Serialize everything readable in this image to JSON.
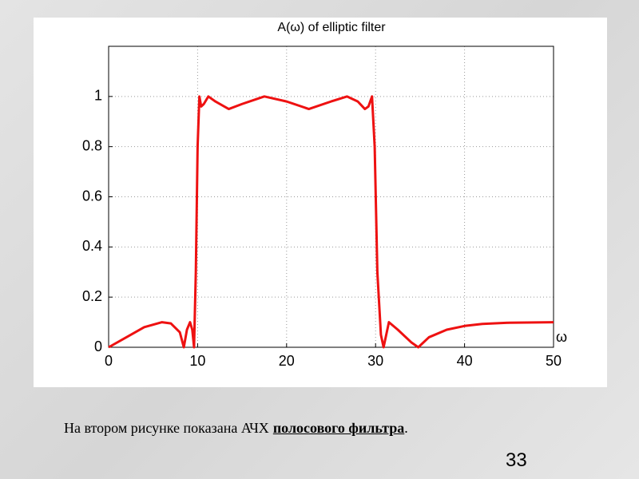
{
  "chart_data": {
    "type": "line",
    "title": "A(ω) of elliptic filter",
    "xlabel": "ω",
    "x": [
      0,
      2,
      4,
      6,
      7,
      8,
      8.45,
      8.8,
      9.15,
      9.4,
      9.6,
      9.8,
      10.0,
      10.2,
      10.4,
      10.7,
      11.2,
      12,
      13.5,
      15,
      17.5,
      20,
      22.5,
      25,
      26.8,
      28,
      28.8,
      29.2,
      29.6,
      29.9,
      30.2,
      30.6,
      30.9,
      31.5,
      32.5,
      34,
      34.8,
      36,
      38,
      40,
      42,
      45,
      50
    ],
    "values": [
      0,
      0.04,
      0.08,
      0.1,
      0.095,
      0.06,
      0,
      0.07,
      0.1,
      0.07,
      0,
      0.3,
      0.8,
      1.0,
      0.96,
      0.97,
      1.0,
      0.98,
      0.95,
      0.97,
      1.0,
      0.98,
      0.95,
      0.98,
      1.0,
      0.98,
      0.95,
      0.96,
      1.0,
      0.8,
      0.3,
      0.05,
      0,
      0.1,
      0.07,
      0.02,
      0,
      0.04,
      0.07,
      0.085,
      0.093,
      0.098,
      0.1
    ],
    "color": "#ee1111",
    "xlim": [
      0,
      50
    ],
    "ylim": [
      0,
      1.2
    ],
    "xticks": [
      0,
      10,
      20,
      30,
      40,
      50
    ],
    "yticks": [
      0,
      0.2,
      0.4,
      0.6,
      0.8,
      1
    ],
    "grid": true
  },
  "caption": {
    "text": "На втором рисунке показана АЧХ",
    "emphasis": "полосового фильтра",
    "end": "."
  },
  "page_number": "33"
}
